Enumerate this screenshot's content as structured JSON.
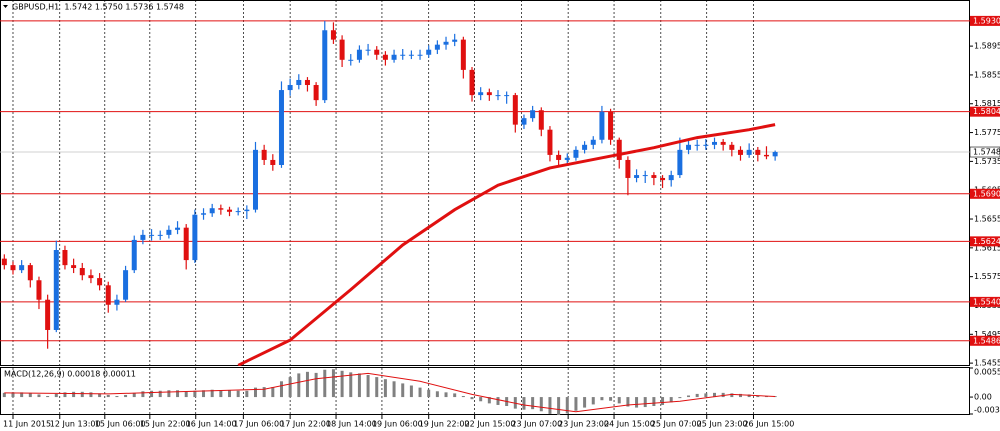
{
  "chart_data": [
    {
      "type": "candlestick",
      "title": "GBPUSD,H1  1.5742 1.5750 1.5736 1.5748",
      "up_color": "#1a6fe0",
      "down_color": "#e01010",
      "xlim": [
        -0.5,
        111.5
      ],
      "ylim": [
        1.5451,
        1.5959
      ],
      "yticks": [
        1.5895,
        1.5855,
        1.5815,
        1.5775,
        1.5735,
        1.5695,
        1.5655,
        1.5615,
        1.5575,
        1.5535,
        1.5495,
        1.5455
      ],
      "levels": [
        {
          "value": 1.593,
          "label": "1.5930"
        },
        1.5804,
        {
          "value": 1.569,
          "label": "1.5690"
        },
        1.5624,
        {
          "value": 1.554,
          "label": "1.5540"
        },
        1.5486
      ],
      "level_color": "#e01010",
      "last_price": 1.5748,
      "ohlc": [
        [
          1.56,
          1.5606,
          1.5585,
          1.5591
        ],
        [
          1.5591,
          1.5596,
          1.5578,
          1.5584
        ],
        [
          1.5584,
          1.5598,
          1.558,
          1.5591
        ],
        [
          1.5591,
          1.5594,
          1.556,
          1.557
        ],
        [
          1.557,
          1.5575,
          1.553,
          1.5543
        ],
        [
          1.5543,
          1.555,
          1.5475,
          1.5501
        ],
        [
          1.5501,
          1.5625,
          1.5498,
          1.5612
        ],
        [
          1.5612,
          1.5618,
          1.5585,
          1.5591
        ],
        [
          1.5591,
          1.56,
          1.558,
          1.5587
        ],
        [
          1.5587,
          1.5594,
          1.557,
          1.5577
        ],
        [
          1.5577,
          1.5585,
          1.5566,
          1.5573
        ],
        [
          1.5573,
          1.558,
          1.5556,
          1.5563
        ],
        [
          1.5563,
          1.5568,
          1.5525,
          1.5536
        ],
        [
          1.5536,
          1.555,
          1.5528,
          1.5543
        ],
        [
          1.5543,
          1.559,
          1.554,
          1.5584
        ],
        [
          1.5584,
          1.5632,
          1.558,
          1.5626
        ],
        [
          1.5626,
          1.564,
          1.562,
          1.5633
        ],
        [
          1.5633,
          1.5641,
          1.5625,
          1.5633
        ],
        [
          1.5633,
          1.5639,
          1.5626,
          1.5633
        ],
        [
          1.5633,
          1.5646,
          1.5628,
          1.564
        ],
        [
          1.564,
          1.5652,
          1.5634,
          1.5643
        ],
        [
          1.5643,
          1.5648,
          1.5585,
          1.5598
        ],
        [
          1.5598,
          1.5668,
          1.5594,
          1.5661
        ],
        [
          1.5661,
          1.567,
          1.5654,
          1.5663
        ],
        [
          1.5663,
          1.5676,
          1.5658,
          1.567
        ],
        [
          1.567,
          1.5675,
          1.5661,
          1.5668
        ],
        [
          1.5668,
          1.5672,
          1.5659,
          1.5665
        ],
        [
          1.5665,
          1.5671,
          1.566,
          1.5666
        ],
        [
          1.5666,
          1.5674,
          1.5655,
          1.5668
        ],
        [
          1.5668,
          1.5762,
          1.5664,
          1.5751
        ],
        [
          1.5751,
          1.5758,
          1.573,
          1.5737
        ],
        [
          1.5737,
          1.5745,
          1.5722,
          1.573
        ],
        [
          1.573,
          1.5846,
          1.5726,
          1.5834
        ],
        [
          1.5834,
          1.585,
          1.5826,
          1.5841
        ],
        [
          1.5841,
          1.5856,
          1.5835,
          1.5848
        ],
        [
          1.5848,
          1.5852,
          1.5832,
          1.5841
        ],
        [
          1.5841,
          1.5845,
          1.5812,
          1.582
        ],
        [
          1.582,
          1.593,
          1.5816,
          1.5917
        ],
        [
          1.5917,
          1.5928,
          1.5898,
          1.5904
        ],
        [
          1.5904,
          1.591,
          1.5866,
          1.5876
        ],
        [
          1.5876,
          1.5884,
          1.5868,
          1.5876
        ],
        [
          1.5876,
          1.5896,
          1.5872,
          1.589
        ],
        [
          1.589,
          1.5898,
          1.5882,
          1.589
        ],
        [
          1.589,
          1.5895,
          1.5876,
          1.5883
        ],
        [
          1.5883,
          1.5888,
          1.5868,
          1.5876
        ],
        [
          1.5876,
          1.589,
          1.5872,
          1.5883
        ],
        [
          1.5883,
          1.5891,
          1.5876,
          1.5883
        ],
        [
          1.5883,
          1.5889,
          1.5877,
          1.5883
        ],
        [
          1.5883,
          1.589,
          1.5876,
          1.5883
        ],
        [
          1.5883,
          1.5896,
          1.5879,
          1.589
        ],
        [
          1.589,
          1.5903,
          1.5884,
          1.5897
        ],
        [
          1.5897,
          1.5908,
          1.589,
          1.5901
        ],
        [
          1.5901,
          1.5912,
          1.5895,
          1.5904
        ],
        [
          1.5904,
          1.5908,
          1.585,
          1.5862
        ],
        [
          1.5862,
          1.5866,
          1.5818,
          1.5827
        ],
        [
          1.5827,
          1.5838,
          1.582,
          1.5831
        ],
        [
          1.5831,
          1.5836,
          1.5819,
          1.5827
        ],
        [
          1.5827,
          1.5834,
          1.582,
          1.5827
        ],
        [
          1.5827,
          1.5832,
          1.5815,
          1.5827
        ],
        [
          1.5827,
          1.583,
          1.5775,
          1.5786
        ],
        [
          1.5786,
          1.58,
          1.578,
          1.5795
        ],
        [
          1.5795,
          1.5812,
          1.579,
          1.5806
        ],
        [
          1.5806,
          1.581,
          1.577,
          1.5779
        ],
        [
          1.5779,
          1.5784,
          1.5735,
          1.5744
        ],
        [
          1.5744,
          1.575,
          1.5728,
          1.5737
        ],
        [
          1.5737,
          1.5746,
          1.5731,
          1.574
        ],
        [
          1.574,
          1.5756,
          1.5736,
          1.5751
        ],
        [
          1.5751,
          1.5763,
          1.5746,
          1.5758
        ],
        [
          1.5758,
          1.577,
          1.5752,
          1.5765
        ],
        [
          1.5765,
          1.5812,
          1.576,
          1.5804
        ],
        [
          1.5804,
          1.5808,
          1.5758,
          1.5765
        ],
        [
          1.5765,
          1.5768,
          1.5725,
          1.5737
        ],
        [
          1.5737,
          1.5742,
          1.5688,
          1.5712
        ],
        [
          1.5712,
          1.5724,
          1.5706,
          1.5716
        ],
        [
          1.5716,
          1.5722,
          1.5705,
          1.5716
        ],
        [
          1.5716,
          1.572,
          1.5702,
          1.5712
        ],
        [
          1.5712,
          1.5716,
          1.5698,
          1.5709
        ],
        [
          1.5709,
          1.5722,
          1.57,
          1.5716
        ],
        [
          1.5716,
          1.5768,
          1.5712,
          1.5751
        ],
        [
          1.5751,
          1.5764,
          1.5745,
          1.5758
        ],
        [
          1.5758,
          1.5765,
          1.575,
          1.5758
        ],
        [
          1.5758,
          1.5766,
          1.5751,
          1.5758
        ],
        [
          1.5758,
          1.5768,
          1.5752,
          1.5762
        ],
        [
          1.5762,
          1.5766,
          1.575,
          1.5758
        ],
        [
          1.5758,
          1.5762,
          1.5742,
          1.5751
        ],
        [
          1.5751,
          1.5756,
          1.5736,
          1.5744
        ],
        [
          1.5744,
          1.576,
          1.574,
          1.5751
        ],
        [
          1.5751,
          1.5755,
          1.5735,
          1.5744
        ],
        [
          1.5744,
          1.5756,
          1.5738,
          1.5742
        ],
        [
          1.5742,
          1.575,
          1.5736,
          1.5748
        ]
      ],
      "ma": {
        "color": "#e01010",
        "x": [
          27,
          33,
          40,
          46,
          52,
          57,
          63,
          69,
          75,
          80,
          86,
          89
        ],
        "values": [
          1.5452,
          1.5487,
          1.5557,
          1.5619,
          1.5668,
          1.5702,
          1.5726,
          1.574,
          1.5754,
          1.5768,
          1.5779,
          1.5786
        ]
      }
    },
    {
      "type": "histogram",
      "title": "MACD(12,26,9) 0.00018 0.00011",
      "color": "#808080",
      "xlim": [
        -0.5,
        111.5
      ],
      "ylim": [
        -0.00322,
        0.00553
      ],
      "yticks": [
        0.00553,
        {
          "value": 0,
          "label": "0.00"
        },
        -0.00322
      ],
      "values": [
        0.0008,
        0.0009,
        0.0009,
        0.0008,
        0.0005,
        0.0002,
        0.0006,
        0.0009,
        0.001,
        0.001,
        0.0009,
        0.0007,
        0.0004,
        0.0002,
        0.0004,
        0.0008,
        0.0011,
        0.0012,
        0.0012,
        0.0013,
        0.0013,
        0.001,
        0.0012,
        0.0013,
        0.0014,
        0.0013,
        0.0013,
        0.0012,
        0.0012,
        0.0018,
        0.0019,
        0.0019,
        0.003,
        0.0038,
        0.0045,
        0.0048,
        0.0046,
        0.0052,
        0.0053,
        0.005,
        0.0047,
        0.0045,
        0.0042,
        0.0038,
        0.0034,
        0.003,
        0.0026,
        0.0022,
        0.0018,
        0.0014,
        0.0011,
        0.0009,
        0.0007,
        0.0002,
        -0.0004,
        -0.0008,
        -0.0012,
        -0.0015,
        -0.0017,
        -0.0022,
        -0.0024,
        -0.0023,
        -0.0027,
        -0.0032,
        -0.0034,
        -0.0031,
        -0.0026,
        -0.002,
        -0.0014,
        -0.0006,
        -0.0007,
        -0.0012,
        -0.0018,
        -0.002,
        -0.0019,
        -0.0017,
        -0.0015,
        -0.001,
        -0.0002,
        0.0003,
        0.0006,
        0.0007,
        0.0008,
        0.0008,
        0.0007,
        0.0006,
        0.0005,
        0.0003,
        0.0002,
        0.00018
      ],
      "signal": {
        "color": "#e01010",
        "x": [
          0,
          6,
          12,
          18,
          24,
          30,
          36,
          42,
          48,
          54,
          60,
          66,
          72,
          78,
          84,
          89
        ],
        "values": [
          0.0008,
          0.0007,
          0.0006,
          0.0009,
          0.0012,
          0.0015,
          0.0035,
          0.0045,
          0.003,
          0.0005,
          -0.0015,
          -0.0028,
          -0.0015,
          -0.0008,
          0.0005,
          0.00011
        ]
      },
      "xticks": [
        {
          "value": 1.0,
          "label": "11 Jun 2015"
        },
        {
          "value": 6.4,
          "label": "12 Jun 13:00"
        },
        {
          "value": 11.6,
          "label": "15 Jun 06:00"
        },
        {
          "value": 16.8,
          "label": "15 Jun 22:00"
        },
        {
          "value": 22.1,
          "label": "16 Jun 14:00"
        },
        {
          "value": 27.6,
          "label": "17 Jun 06:00"
        },
        {
          "value": 33.0,
          "label": "17 Jun 22:00"
        },
        {
          "value": 38.3,
          "label": "18 Jun 14:00"
        },
        {
          "value": 43.6,
          "label": "19 Jun 06:00"
        },
        {
          "value": 49.0,
          "label": "19 Jun 22:00"
        },
        {
          "value": 54.3,
          "label": "22 Jun 15:00"
        },
        {
          "value": 59.7,
          "label": "23 Jun 07:00"
        },
        {
          "value": 65.1,
          "label": "23 Jun 23:00"
        },
        {
          "value": 70.4,
          "label": "24 Jun 15:00"
        },
        {
          "value": 75.8,
          "label": "25 Jun 07:00"
        },
        {
          "value": 81.1,
          "label": "25 Jun 23:00"
        },
        {
          "value": 86.5,
          "label": "26 Jun 15:00"
        }
      ]
    }
  ]
}
